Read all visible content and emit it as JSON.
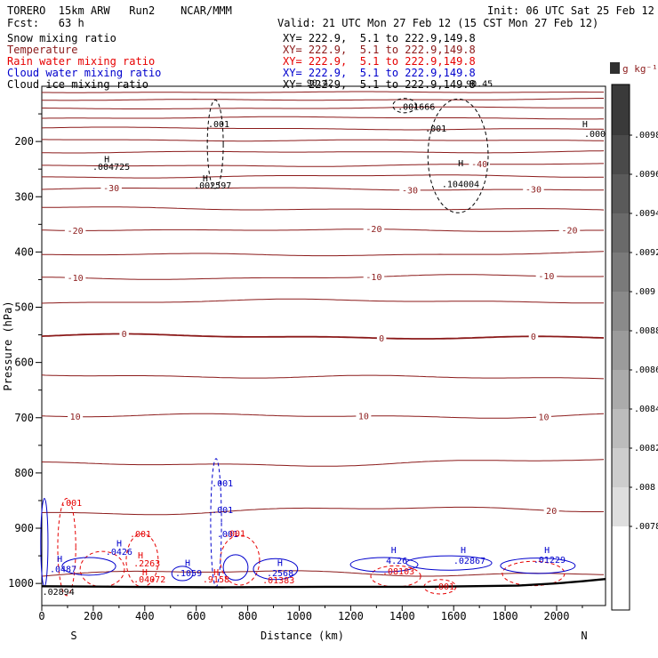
{
  "header": {
    "title_left": "TORERO  15km ARW   Run2    NCAR/MMM",
    "init": "Init: 06 UTC Sat 25 Feb 12",
    "fcst": "Fcst:   63 h",
    "valid": "Valid: 21 UTC Mon 27 Feb 12 (15 CST Mon 27 Feb 12)"
  },
  "legend": [
    {
      "label": "Snow mixing ratio",
      "xy": "XY= 222.9,  5.1 to 222.9,149.8",
      "color": "#000000"
    },
    {
      "label": "Temperature",
      "xy": "XY= 222.9,  5.1 to 222.9,149.8",
      "color": "#8b1a1a"
    },
    {
      "label": "Rain water mixing ratio",
      "xy": "XY= 222.9,  5.1 to 222.9,149.8",
      "color": "#e60000"
    },
    {
      "label": "Cloud water mixing ratio",
      "xy": "XY= 222.9,  5.1 to 222.9,149.8",
      "color": "#0000cd"
    },
    {
      "label": "Cloud ice mixing ratio",
      "xy": "XY= 222.9,  5.1 to 222.9,149.8",
      "color": "#000000"
    }
  ],
  "palette": {
    "black": "#000000",
    "darkred": "#8b1a1a",
    "red": "#e60000",
    "blue": "#0000cd"
  },
  "axes": {
    "y_label": "Pressure (hPa)",
    "y_ticks": [
      200,
      300,
      400,
      500,
      600,
      700,
      800,
      900,
      1000
    ],
    "x_label": "Distance (km)",
    "x_ticks": [
      0,
      200,
      400,
      600,
      800,
      1000,
      1200,
      1400,
      1600,
      1800,
      2000
    ],
    "left_end_label": "S",
    "right_end_label": "N"
  },
  "colorbar": {
    "title": "g kg⁻¹",
    "labels": [
      ".0098",
      ".0096",
      ".0094",
      ".0092",
      ".009",
      ".0088",
      ".0086",
      ".0084",
      ".0082",
      ".008",
      ".0078"
    ],
    "colors": [
      "#3a3a3a",
      "#4a4a4a",
      "#5a5a5a",
      "#6a6a6a",
      "#7a7a7a",
      "#8a8a8a",
      "#9b9b9b",
      "#ababab",
      "#bcbcbc",
      "#cdcdcd",
      "#dedede",
      "#ffffff"
    ]
  },
  "chart_data": {
    "type": "contour_cross_section",
    "x_range_km": [
      0,
      2190
    ],
    "pressure_range_hpa": [
      100,
      1040
    ],
    "temperature_contours": [
      {
        "label": "",
        "p": 110
      },
      {
        "label": "",
        "p": 124
      },
      {
        "label": "",
        "p": 140
      },
      {
        "label": "",
        "p": 158
      },
      {
        "label": "",
        "p": 177
      },
      {
        "label": "",
        "p": 197
      },
      {
        "label": "",
        "p": 218
      },
      {
        "label": "-40",
        "p": 243,
        "label_km": [
          1700
        ]
      },
      {
        "label": "",
        "p": 264
      },
      {
        "label": "-30",
        "p": 287,
        "label_km": [
          270,
          1430,
          1910
        ]
      },
      {
        "label": "",
        "p": 322
      },
      {
        "label": "-20",
        "p": 359,
        "label_km": [
          130,
          1290,
          2050
        ]
      },
      {
        "label": "",
        "p": 403
      },
      {
        "label": "-10",
        "p": 446,
        "label_km": [
          130,
          1290,
          1960
        ]
      },
      {
        "label": "",
        "p": 491
      },
      {
        "label": "0",
        "p": 555,
        "bold": true,
        "label_km": [
          320,
          1320,
          1910
        ]
      },
      {
        "label": "",
        "p": 625
      },
      {
        "label": "10",
        "p": 694,
        "label_km": [
          130,
          1250,
          1950
        ]
      },
      {
        "label": "",
        "p": 781
      },
      {
        "label": "20",
        "p": 869,
        "label_km": [
          1980
        ]
      },
      {
        "label": "",
        "p": 985
      }
    ],
    "black_dashed_cells": [
      {
        "km": 674,
        "p": 205,
        "rkm": 31,
        "rp": 80
      },
      {
        "km": 1617,
        "p": 226,
        "rkm": 117,
        "rp": 103
      },
      {
        "km": 1409,
        "p": 135,
        "rkm": 45,
        "rp": 13
      }
    ],
    "rain_cells": [
      {
        "km": 97,
        "p": 934,
        "rkm": 35,
        "rp": 88
      },
      {
        "km": 235,
        "p": 974,
        "rkm": 86,
        "rp": 32
      },
      {
        "km": 390,
        "p": 958,
        "rkm": 62,
        "rp": 48
      },
      {
        "km": 770,
        "p": 958,
        "rkm": 76,
        "rp": 45
      },
      {
        "km": 1375,
        "p": 987,
        "rkm": 97,
        "rp": 19
      },
      {
        "km": 1910,
        "p": 982,
        "rkm": 121,
        "rp": 22
      },
      {
        "km": 1547,
        "p": 1006,
        "rkm": 62,
        "rp": 13
      }
    ],
    "cloud_cells": [
      {
        "km": 183,
        "p": 969,
        "rkm": 104,
        "rp": 16
      },
      {
        "km": 10,
        "p": 926,
        "rkm": 14,
        "rp": 80
      },
      {
        "km": 677,
        "p": 890,
        "rkm": 21,
        "rp": 116,
        "dash": true
      },
      {
        "km": 753,
        "p": 971,
        "rkm": 48,
        "rp": 23
      },
      {
        "km": 908,
        "p": 974,
        "rkm": 86,
        "rp": 19
      },
      {
        "km": 1330,
        "p": 966,
        "rkm": 131,
        "rp": 13
      },
      {
        "km": 1582,
        "p": 963,
        "rkm": 166,
        "rp": 13
      },
      {
        "km": 1927,
        "p": 968,
        "rkm": 145,
        "rp": 14
      },
      {
        "km": 546,
        "p": 982,
        "rkm": 41,
        "rp": 13
      }
    ],
    "surface_line": [
      [
        0,
        1005
      ],
      [
        300,
        1006
      ],
      [
        700,
        1007
      ],
      [
        1100,
        1006
      ],
      [
        1500,
        1006
      ],
      [
        1850,
        1004
      ],
      [
        2000,
        1000
      ],
      [
        2100,
        996
      ],
      [
        2190,
        992
      ]
    ],
    "annotations": [
      {
        "t": "H",
        "km": 242,
        "p": 238,
        "c": "black"
      },
      {
        "t": ".004725",
        "km": 197,
        "p": 251,
        "c": "black"
      },
      {
        "t": "H",
        "km": 625,
        "p": 272,
        "c": "black"
      },
      {
        "t": ".002597",
        "km": 591,
        "p": 285,
        "c": "black"
      },
      {
        "t": ".001",
        "km": 646,
        "p": 174,
        "c": "black"
      },
      {
        "t": ".001666",
        "km": 1382,
        "p": 143,
        "c": "black"
      },
      {
        "t": ".001",
        "km": 1489,
        "p": 182,
        "c": "black"
      },
      {
        "t": "H",
        "km": 1617,
        "p": 245,
        "c": "black"
      },
      {
        "t": ".104004",
        "km": 1554,
        "p": 283,
        "c": "black"
      },
      {
        "t": "H",
        "km": 2100,
        "p": 174,
        "c": "black"
      },
      {
        "t": ".000",
        "km": 2107,
        "p": 192,
        "c": "black"
      },
      {
        "t": "90.42",
        "km": 1029,
        "p": 99,
        "c": "black"
      },
      {
        "t": "90.45",
        "km": 1648,
        "p": 101,
        "c": "black"
      },
      {
        "t": ".02894",
        "km": 2,
        "p": 1021,
        "c": "black"
      },
      {
        "t": "H",
        "km": 59,
        "p": 961,
        "c": "blue"
      },
      {
        "t": ".0487",
        "km": 31,
        "p": 980,
        "c": "blue"
      },
      {
        "t": "H",
        "km": 290,
        "p": 933,
        "c": "blue"
      },
      {
        "t": ".0426",
        "km": 248,
        "p": 948,
        "c": "blue"
      },
      {
        "t": ".001",
        "km": 660,
        "p": 824,
        "c": "blue"
      },
      {
        "t": ".001",
        "km": 660,
        "p": 873,
        "c": "blue"
      },
      {
        "t": ".001",
        "km": 680,
        "p": 916,
        "c": "blue"
      },
      {
        "t": "H",
        "km": 556,
        "p": 968,
        "c": "blue"
      },
      {
        "t": ".1059",
        "km": 518,
        "p": 987,
        "c": "blue"
      },
      {
        "t": "H",
        "km": 915,
        "p": 968,
        "c": "blue"
      },
      {
        "t": ".2568",
        "km": 874,
        "p": 987,
        "c": "blue"
      },
      {
        "t": "H",
        "km": 1357,
        "p": 945,
        "c": "blue"
      },
      {
        "t": "4.26",
        "km": 1337,
        "p": 964,
        "c": "blue"
      },
      {
        "t": "H",
        "km": 1627,
        "p": 945,
        "c": "blue"
      },
      {
        "t": ".02867",
        "km": 1599,
        "p": 964,
        "c": "blue"
      },
      {
        "t": "H",
        "km": 1952,
        "p": 945,
        "c": "blue"
      },
      {
        "t": ".01229",
        "km": 1910,
        "p": 963,
        "c": "blue"
      },
      {
        "t": ".001",
        "km": 73,
        "p": 860,
        "c": "red"
      },
      {
        "t": ".001",
        "km": 342,
        "p": 916,
        "c": "red"
      },
      {
        "t": ".001",
        "km": 708,
        "p": 915,
        "c": "red"
      },
      {
        "t": "H",
        "km": 373,
        "p": 955,
        "c": "red"
      },
      {
        "t": ".2263",
        "km": 356,
        "p": 969,
        "c": "red"
      },
      {
        "t": "H",
        "km": 390,
        "p": 985,
        "c": "red"
      },
      {
        "t": ".04072",
        "km": 356,
        "p": 998,
        "c": "red"
      },
      {
        "t": "H",
        "km": 667,
        "p": 985,
        "c": "red"
      },
      {
        "t": ".9158",
        "km": 625,
        "p": 998,
        "c": "red"
      },
      {
        "t": ".01383",
        "km": 857,
        "p": 1000,
        "c": "red"
      },
      {
        "t": ".08103",
        "km": 1323,
        "p": 984,
        "c": "red"
      },
      {
        "t": ".001",
        "km": 1520,
        "p": 1011,
        "c": "red"
      }
    ]
  }
}
